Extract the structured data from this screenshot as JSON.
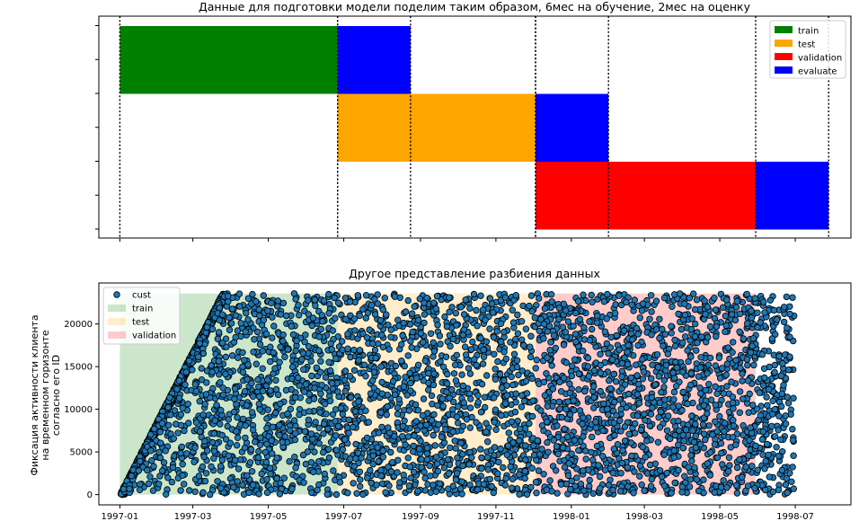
{
  "chart_data": [
    {
      "type": "bar",
      "subtype": "gantt",
      "title": "Данные для подготовки модели поделим таким образом, 6мес на обучение, 2мес на оценку",
      "xlim": [
        "1996-12-15",
        "1998-08-15"
      ],
      "x_tick_labels_visible": false,
      "y_tick_labels_visible": false,
      "legend": {
        "placement": "top-right",
        "entries": [
          {
            "label": "train",
            "color": "#008000"
          },
          {
            "label": "test",
            "color": "#ffa500"
          },
          {
            "label": "validation",
            "color": "#ff0000"
          },
          {
            "label": "evaluate",
            "color": "#0000ff"
          }
        ]
      },
      "rows": [
        {
          "segments": [
            {
              "kind": "train",
              "start": "1997-01-01",
              "end": "1997-06-26"
            },
            {
              "kind": "evaluate",
              "start": "1997-06-26",
              "end": "1997-08-24"
            }
          ]
        },
        {
          "segments": [
            {
              "kind": "test",
              "start": "1997-06-26",
              "end": "1997-12-03"
            },
            {
              "kind": "evaluate",
              "start": "1997-12-03",
              "end": "1998-01-31"
            }
          ]
        },
        {
          "segments": [
            {
              "kind": "validation",
              "start": "1997-12-03",
              "end": "1998-05-30"
            },
            {
              "kind": "evaluate",
              "start": "1998-05-30",
              "end": "1998-07-28"
            }
          ]
        }
      ],
      "vlines": [
        "1997-01-01",
        "1997-06-26",
        "1997-06-26",
        "1997-08-24",
        "1997-12-03",
        "1997-12-03",
        "1998-01-31",
        "1998-05-30",
        "1998-07-28"
      ],
      "colors": {
        "train": "#008000",
        "test": "#ffa500",
        "validation": "#ff0000",
        "evaluate": "#0000ff"
      }
    },
    {
      "type": "scatter",
      "title": "Другое представление разбиения данных",
      "ylabel_lines": [
        "Фиксация активности клиента",
        "на временном горизонте",
        "согласно его ID"
      ],
      "xlabel": "",
      "xlim": [
        "1996-12-15",
        "1998-08-15"
      ],
      "ylim": [
        -1200,
        24800
      ],
      "x_ticks": [
        "1997-01",
        "1997-03",
        "1997-05",
        "1997-07",
        "1997-09",
        "1997-11",
        "1998-01",
        "1998-03",
        "1998-05",
        "1998-07"
      ],
      "y_ticks": [
        0,
        5000,
        10000,
        15000,
        20000
      ],
      "legend": {
        "placement": "top-left",
        "entries": [
          {
            "label": "cust",
            "marker": "circle",
            "color": "#1f77b4"
          },
          {
            "label": "train",
            "color": "#008000",
            "alpha": 0.2
          },
          {
            "label": "test",
            "color": "#ffa500",
            "alpha": 0.2
          },
          {
            "label": "validation",
            "color": "#ff0000",
            "alpha": 0.2
          }
        ]
      },
      "spans": [
        {
          "label": "train",
          "start": "1997-01-01",
          "end": "1997-06-26",
          "color": "#008000",
          "alpha": 0.2
        },
        {
          "label": "test",
          "start": "1997-06-26",
          "end": "1997-12-03",
          "color": "#ffa500",
          "alpha": 0.2
        },
        {
          "label": "validation",
          "start": "1997-12-03",
          "end": "1998-05-30",
          "color": "#ff0000",
          "alpha": 0.2
        }
      ],
      "series": [
        {
          "name": "cust",
          "description": "one point per customer visit; customer IDs 1–23570 with first purchases spread linearly over 1997-01-01 to 1997-03-25, later visits scattered uniformly to 1998-06-30",
          "first_purchase": {
            "x_start": "1997-01-01",
            "x_end": "1997-03-25",
            "id_start": 1,
            "id_end": 23570
          },
          "repeat_visits": {
            "x_start": "1997-01-01",
            "x_end": "1998-06-30",
            "id_max": 23570
          },
          "approx_point_count": 5200,
          "marker_color": "#1f77b4",
          "edge_color": "#000000"
        }
      ]
    }
  ]
}
